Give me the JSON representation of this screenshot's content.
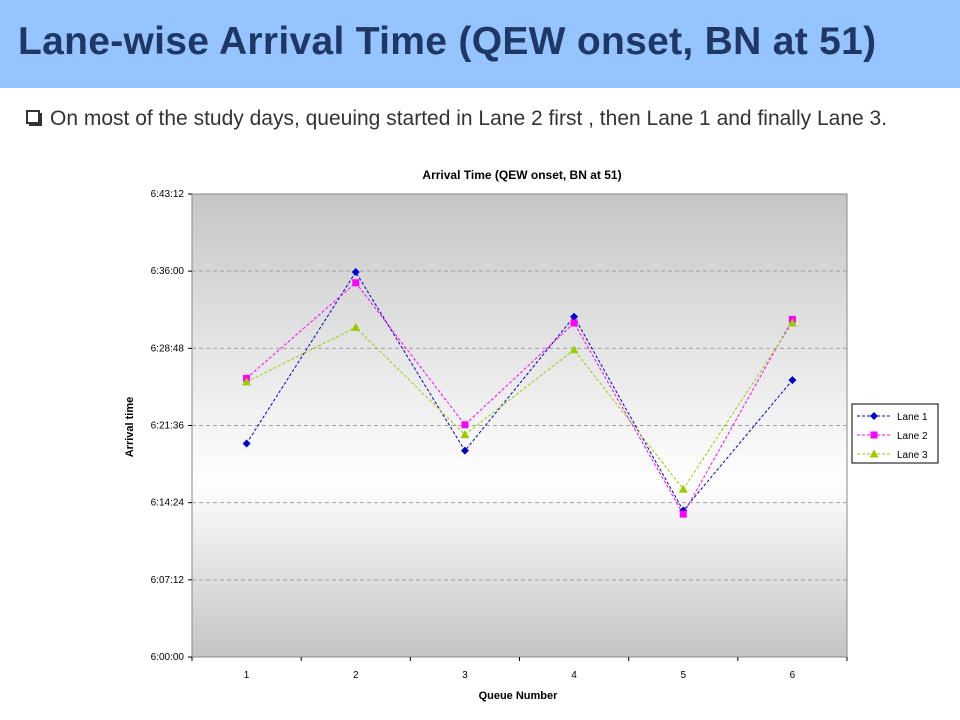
{
  "header": {
    "title": "Lane-wise Arrival Time (QEW onset, BN at 51)",
    "bullet_text": "On most of the study days, queuing started in Lane 2 first , then Lane 1 and finally Lane 3.",
    "banner_color": "#96c4ff",
    "title_color": "#1f3764"
  },
  "chart_data": {
    "type": "line",
    "title": "Arrival Time (QEW onset, BN at 51)",
    "xlabel": "Queue Number",
    "ylabel": "Arrival time",
    "categories": [
      "1",
      "2",
      "3",
      "4",
      "5",
      "6"
    ],
    "y_ticks": [
      "6:00:00",
      "6:07:12",
      "6:14:24",
      "6:21:36",
      "6:28:48",
      "6:36:00",
      "6:43:12"
    ],
    "ylim": [
      "6:00:00",
      "6:43:12"
    ],
    "grid": true,
    "legend_position": "right",
    "series": [
      {
        "name": "Lane 1",
        "color": "#0000cc",
        "marker": "diamond",
        "values": [
          "6:19:55",
          "6:35:55",
          "6:19:15",
          "6:31:45",
          "6:13:40",
          "6:25:50"
        ]
      },
      {
        "name": "Lane 2",
        "color": "#ff00ff",
        "marker": "square",
        "values": [
          "6:26:00",
          "6:34:55",
          "6:21:40",
          "6:31:10",
          "6:13:20",
          "6:31:30"
        ]
      },
      {
        "name": "Lane 3",
        "color": "#99cc00",
        "marker": "triangle",
        "values": [
          "6:25:40",
          "6:30:45",
          "6:20:45",
          "6:28:40",
          "6:15:40",
          "6:31:10"
        ]
      }
    ]
  }
}
